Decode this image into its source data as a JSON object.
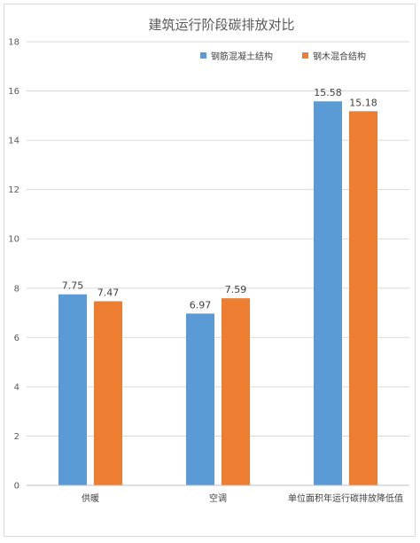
{
  "chart_data": {
    "type": "bar",
    "title": "建筑运行阶段碳排放对比",
    "categories": [
      "供暖",
      "空调",
      "单位面积年运行碳排放降低值"
    ],
    "series": [
      {
        "name": "钢筋混凝土结构",
        "values": [
          7.75,
          6.97,
          15.58
        ],
        "color": "#5b9bd5"
      },
      {
        "name": "钢木混合结构",
        "values": [
          7.47,
          7.59,
          15.18
        ],
        "color": "#ed7d31"
      }
    ],
    "data_labels": [
      [
        "7.75",
        "6.97",
        "15.58"
      ],
      [
        "7.47",
        "7.59",
        "15.18"
      ]
    ],
    "ylim": [
      0,
      18
    ],
    "yticks": [
      "0",
      "2",
      "4",
      "6",
      "8",
      "10",
      "12",
      "14",
      "16",
      "18"
    ],
    "grid": true,
    "legend_position": "top-right"
  }
}
